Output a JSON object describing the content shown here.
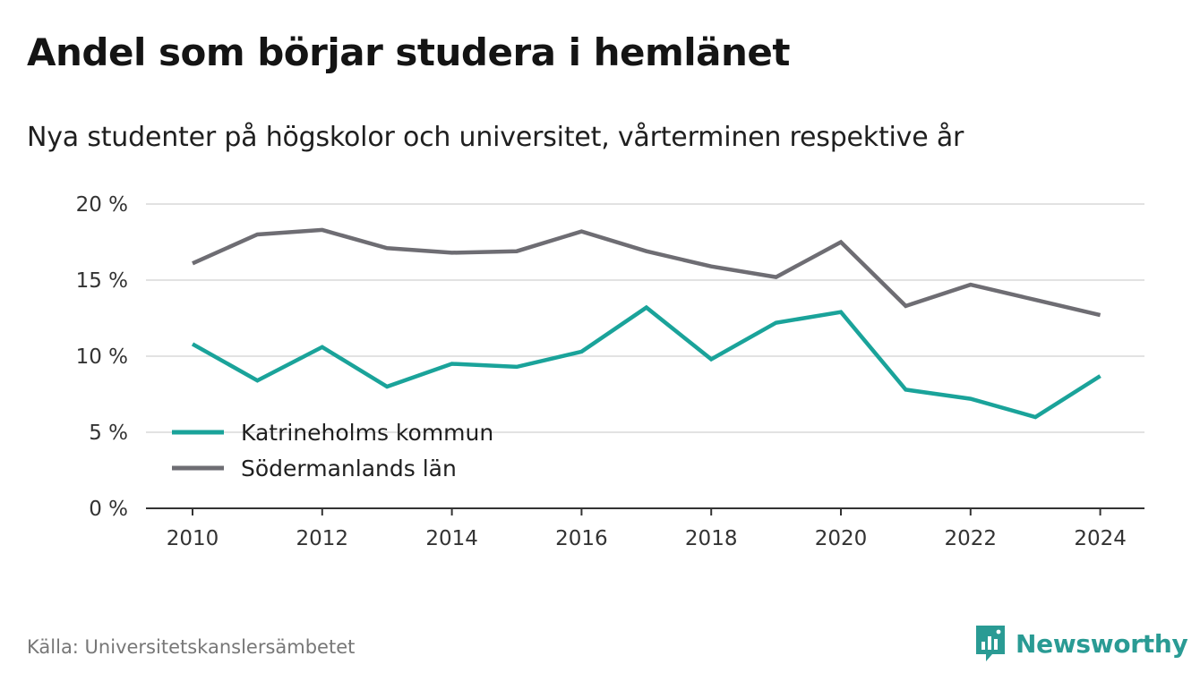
{
  "title": "Andel som börjar studera i hemlänet",
  "subtitle": "Nya studenter på högskolor och universitet, vårterminen respektive år",
  "source": "Källa: Universitetskanslersämbetet",
  "brand": {
    "name": "Newsworthy",
    "icon": "newsworthy-logo-icon",
    "color": "#2a9b94"
  },
  "chart_data": {
    "type": "line",
    "x": [
      2010,
      2011,
      2012,
      2013,
      2014,
      2015,
      2016,
      2017,
      2018,
      2019,
      2020,
      2021,
      2022,
      2023,
      2024
    ],
    "x_tick_labels": [
      "2010",
      "2012",
      "2014",
      "2016",
      "2018",
      "2020",
      "2022",
      "2024"
    ],
    "y_tick_labels": [
      "0 %",
      "5 %",
      "10 %",
      "15 %",
      "20 %"
    ],
    "ylim": [
      0,
      20
    ],
    "grid": true,
    "legend_position": "bottom-left",
    "series": [
      {
        "name": "Katrineholms kommun",
        "color": "#1aa39a",
        "values": [
          10.8,
          8.4,
          10.6,
          8.0,
          9.5,
          9.3,
          10.3,
          13.2,
          9.8,
          12.2,
          12.9,
          7.8,
          7.2,
          6.0,
          8.7
        ]
      },
      {
        "name": "Södermanlands län",
        "color": "#6e6d73",
        "values": [
          16.1,
          18.0,
          18.3,
          17.1,
          16.8,
          16.9,
          18.2,
          16.9,
          15.9,
          15.2,
          17.5,
          13.3,
          14.7,
          13.7,
          12.7
        ]
      }
    ]
  }
}
